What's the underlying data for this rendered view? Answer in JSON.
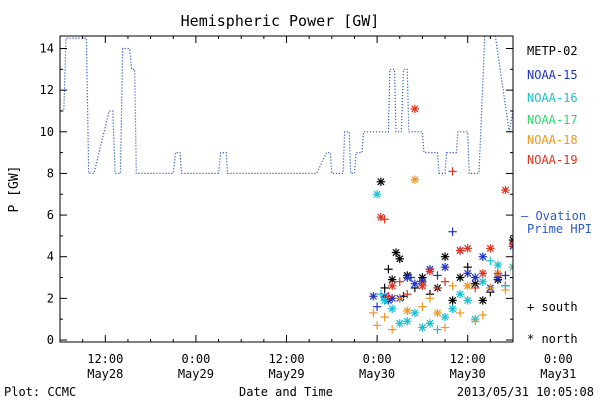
{
  "chart_data": {
    "type": "scatter",
    "title": "Hemispheric Power [GW]",
    "ylabel": "P [GW]",
    "xlabel": "Date and Time",
    "ylim": [
      0,
      15
    ],
    "yticks": [
      0,
      2,
      4,
      6,
      8,
      10,
      12,
      14
    ],
    "xlim_hours": [
      -6,
      54
    ],
    "xticks": [
      {
        "h": 0,
        "time": "12:00",
        "date": "May28"
      },
      {
        "h": 12,
        "time": "0:00",
        "date": "May29"
      },
      {
        "h": 24,
        "time": "12:00",
        "date": "May29"
      },
      {
        "h": 36,
        "time": "0:00",
        "date": "May30"
      },
      {
        "h": 48,
        "time": "12:00",
        "date": "May30"
      },
      {
        "h": 60,
        "time": "0:00",
        "date": "May31"
      }
    ],
    "footer_left": "Plot: CCMC",
    "footer_right": "2013/05/31 10:05:08",
    "legend": {
      "series_labels": [
        {
          "name": "METP-02",
          "color": "#000000"
        },
        {
          "name": "NOAA-15",
          "color": "#1e32c8"
        },
        {
          "name": "NOAA-16",
          "color": "#19c0d0"
        },
        {
          "name": "NOAA-17",
          "color": "#2fd86a"
        },
        {
          "name": "NOAA-18",
          "color": "#f0961e"
        },
        {
          "name": "NOAA-19",
          "color": "#e0321e"
        }
      ],
      "ovation_label_1": "— Ovation",
      "ovation_label_2": "Prime HPI",
      "south_label": "+ south",
      "north_label": "* north"
    },
    "ovation_line": {
      "color": "#2a5acc",
      "points": [
        [
          -6.5,
          11
        ],
        [
          -5.5,
          11
        ],
        [
          -5.2,
          14.5
        ],
        [
          -2.5,
          14.5
        ],
        [
          -2.2,
          8
        ],
        [
          -1.5,
          8
        ],
        [
          0.5,
          11
        ],
        [
          1,
          11
        ],
        [
          1.3,
          8
        ],
        [
          2,
          8
        ],
        [
          2.3,
          14
        ],
        [
          3.2,
          14
        ],
        [
          3.5,
          13
        ],
        [
          3.9,
          13
        ],
        [
          4.1,
          8
        ],
        [
          9,
          8
        ],
        [
          9.3,
          9
        ],
        [
          9.9,
          9
        ],
        [
          10.1,
          8
        ],
        [
          15,
          8
        ],
        [
          15.3,
          9
        ],
        [
          16,
          9
        ],
        [
          16.2,
          8
        ],
        [
          28,
          8
        ],
        [
          29.3,
          9
        ],
        [
          29.8,
          9
        ],
        [
          30,
          8
        ],
        [
          31.5,
          8
        ],
        [
          31.7,
          10
        ],
        [
          32.3,
          10
        ],
        [
          32.5,
          8
        ],
        [
          33,
          8
        ],
        [
          33.2,
          9
        ],
        [
          34,
          9
        ],
        [
          34.2,
          10
        ],
        [
          37.5,
          10
        ],
        [
          37.7,
          13
        ],
        [
          38.3,
          13
        ],
        [
          38.5,
          10
        ],
        [
          39.2,
          10
        ],
        [
          39.5,
          13
        ],
        [
          40,
          13
        ],
        [
          40.2,
          10
        ],
        [
          42,
          10
        ],
        [
          42.2,
          9
        ],
        [
          44,
          9
        ],
        [
          44.2,
          8
        ],
        [
          45,
          8
        ],
        [
          45.2,
          9
        ],
        [
          46.5,
          9
        ],
        [
          46.7,
          10
        ],
        [
          48,
          10
        ],
        [
          48.2,
          8
        ],
        [
          49.5,
          8
        ],
        [
          50.3,
          15
        ],
        [
          51.5,
          15
        ],
        [
          53.5,
          10
        ],
        [
          54,
          11
        ],
        [
          54.3,
          15
        ],
        [
          55,
          15
        ],
        [
          55.2,
          11
        ],
        [
          56.5,
          11
        ],
        [
          56.7,
          8
        ],
        [
          58,
          8
        ],
        [
          58.3,
          10
        ],
        [
          60.5,
          10
        ],
        [
          60.8,
          12
        ],
        [
          61,
          12
        ],
        [
          61.2,
          9
        ],
        [
          62,
          9
        ],
        [
          62.3,
          8
        ],
        [
          63.5,
          8
        ],
        [
          63.8,
          11
        ],
        [
          64,
          11
        ],
        [
          64.2,
          10
        ],
        [
          65,
          10
        ],
        [
          65.2,
          9
        ],
        [
          66,
          9
        ],
        [
          66.2,
          10
        ],
        [
          67.5,
          10
        ],
        [
          67.7,
          12
        ],
        [
          68,
          12
        ],
        [
          68.2,
          9
        ],
        [
          69,
          9
        ],
        [
          69.3,
          11
        ],
        [
          70.8,
          11
        ],
        [
          71,
          14
        ],
        [
          72,
          14
        ],
        [
          72.3,
          11
        ],
        [
          73.5,
          11
        ],
        [
          73.8,
          13
        ],
        [
          74.2,
          13
        ],
        [
          74.5,
          10
        ]
      ]
    },
    "series": [
      {
        "name": "METP-02",
        "color": "#000000",
        "points": [
          [
            36.5,
            7.6,
            "north"
          ],
          [
            37,
            2.5,
            "south"
          ],
          [
            37.5,
            3.4,
            "south"
          ],
          [
            38,
            2.9,
            "north"
          ],
          [
            38.5,
            4.2,
            "north"
          ],
          [
            39,
            3.9,
            "north"
          ],
          [
            39.5,
            2.1,
            "south"
          ],
          [
            40,
            3.1,
            "north"
          ],
          [
            41,
            2.5,
            "south"
          ],
          [
            42,
            3,
            "north"
          ],
          [
            43,
            2.2,
            "south"
          ],
          [
            44,
            2.5,
            "north"
          ],
          [
            45,
            4,
            "north"
          ],
          [
            46,
            1.9,
            "north"
          ],
          [
            47,
            3,
            "north"
          ],
          [
            48,
            3.5,
            "south"
          ],
          [
            49,
            2.7,
            "north"
          ],
          [
            50,
            1.9,
            "north"
          ],
          [
            51,
            2.3,
            "south"
          ],
          [
            52,
            2.9,
            "north"
          ],
          [
            53,
            2.6,
            "south"
          ],
          [
            54,
            4.8,
            "north"
          ],
          [
            55,
            6.1,
            "north"
          ],
          [
            56,
            5.8,
            "south"
          ],
          [
            57,
            2.3,
            "north"
          ],
          [
            58,
            1.9,
            "south"
          ],
          [
            59,
            3.2,
            "south"
          ],
          [
            60,
            6.3,
            "north"
          ],
          [
            61,
            3.3,
            "south"
          ],
          [
            62,
            4.2,
            "north"
          ],
          [
            63,
            5.6,
            "north"
          ],
          [
            64,
            2.2,
            "north"
          ],
          [
            65,
            3,
            "south"
          ],
          [
            66,
            2.5,
            "north"
          ]
        ]
      },
      {
        "name": "NOAA-15",
        "color": "#1e32c8",
        "points": [
          [
            35.5,
            2.1,
            "north"
          ],
          [
            36,
            1.6,
            "south"
          ],
          [
            37,
            2.1,
            "north"
          ],
          [
            37.5,
            1.9,
            "north"
          ],
          [
            38,
            2,
            "north"
          ],
          [
            39,
            2,
            "north"
          ],
          [
            40,
            3,
            "north"
          ],
          [
            40.5,
            3,
            "south"
          ],
          [
            41,
            2.7,
            "north"
          ],
          [
            42,
            2.8,
            "north"
          ],
          [
            43,
            3.4,
            "north"
          ],
          [
            44,
            3.1,
            "south"
          ],
          [
            45,
            3.5,
            "north"
          ],
          [
            46,
            5.2,
            "south"
          ],
          [
            47,
            4.3,
            "north"
          ],
          [
            48,
            3.2,
            "north"
          ],
          [
            49,
            3,
            "north"
          ],
          [
            50,
            4,
            "north"
          ],
          [
            51,
            2.5,
            "north"
          ],
          [
            52,
            3,
            "north"
          ],
          [
            53,
            3.1,
            "south"
          ],
          [
            54,
            4.5,
            "north"
          ],
          [
            55,
            3.7,
            "north"
          ],
          [
            56,
            3,
            "south"
          ],
          [
            57,
            2,
            "north"
          ],
          [
            58,
            3.5,
            "north"
          ],
          [
            59,
            2.7,
            "south"
          ],
          [
            60,
            2.9,
            "north"
          ],
          [
            61,
            4.5,
            "south"
          ],
          [
            62,
            4.3,
            "north"
          ],
          [
            63,
            3.1,
            "north"
          ],
          [
            64,
            3.8,
            "north"
          ],
          [
            65,
            2.9,
            "south"
          ],
          [
            66,
            6.6,
            "south"
          ],
          [
            67,
            2.7,
            "north"
          ]
        ]
      },
      {
        "name": "NOAA-16",
        "color": "#19c0d0",
        "points": [
          [
            36,
            7,
            "north"
          ],
          [
            36.5,
            2.2,
            "south"
          ],
          [
            37,
            1.9,
            "north"
          ],
          [
            38,
            1.5,
            "north"
          ],
          [
            39,
            0.8,
            "north"
          ],
          [
            40,
            0.9,
            "north"
          ],
          [
            41,
            1.3,
            "north"
          ],
          [
            42,
            0.6,
            "north"
          ],
          [
            43,
            0.8,
            "north"
          ],
          [
            44,
            0.5,
            "south"
          ],
          [
            45,
            1.1,
            "north"
          ],
          [
            46,
            1.5,
            "north"
          ],
          [
            47,
            2.2,
            "north"
          ],
          [
            48,
            1.9,
            "north"
          ],
          [
            49,
            1,
            "north"
          ],
          [
            50,
            2.8,
            "north"
          ],
          [
            51,
            3.8,
            "south"
          ],
          [
            52,
            3.6,
            "north"
          ],
          [
            53,
            2.6,
            "south"
          ],
          [
            54,
            3.5,
            "north"
          ],
          [
            55,
            1.7,
            "north"
          ],
          [
            56,
            2.3,
            "north"
          ],
          [
            57,
            3.4,
            "north"
          ],
          [
            58,
            3,
            "north"
          ],
          [
            59,
            1.8,
            "south"
          ],
          [
            60,
            13.3,
            "south"
          ],
          [
            61,
            2.2,
            "north"
          ],
          [
            62,
            1.8,
            "north"
          ],
          [
            63,
            2.5,
            "north"
          ],
          [
            64,
            1.5,
            "south"
          ],
          [
            65,
            0.9,
            "north"
          ],
          [
            66,
            0.3,
            "north"
          ],
          [
            67,
            0.1,
            "south"
          ]
        ]
      },
      {
        "name": "NOAA-18",
        "color": "#f0961e",
        "points": [
          [
            35.5,
            1.3,
            "south"
          ],
          [
            36,
            0.7,
            "south"
          ],
          [
            37,
            1.1,
            "south"
          ],
          [
            38,
            0.5,
            "south"
          ],
          [
            39,
            2,
            "south"
          ],
          [
            40,
            1.4,
            "north"
          ],
          [
            41,
            7.7,
            "north"
          ],
          [
            42,
            1.6,
            "south"
          ],
          [
            43,
            2,
            "south"
          ],
          [
            44,
            1.3,
            "north"
          ],
          [
            45,
            0.6,
            "south"
          ],
          [
            46,
            2.6,
            "south"
          ],
          [
            47,
            1.3,
            "south"
          ],
          [
            48,
            2.6,
            "north"
          ],
          [
            49,
            0.9,
            "south"
          ],
          [
            50,
            1.2,
            "south"
          ],
          [
            51,
            2.5,
            "south"
          ],
          [
            52,
            3.2,
            "north"
          ],
          [
            53,
            2.4,
            "south"
          ],
          [
            54,
            3.5,
            "south"
          ],
          [
            55,
            1.9,
            "north"
          ],
          [
            56,
            1.3,
            "south"
          ],
          [
            57,
            2.4,
            "south"
          ],
          [
            58,
            1.8,
            "south"
          ],
          [
            59,
            1.6,
            "south"
          ],
          [
            60,
            1,
            "south"
          ],
          [
            61,
            0.5,
            "south"
          ],
          [
            62,
            0.5,
            "south"
          ],
          [
            63,
            2,
            "north"
          ],
          [
            64,
            1.1,
            "south"
          ],
          [
            65,
            2.4,
            "north"
          ],
          [
            66,
            1.5,
            "south"
          ],
          [
            67,
            0.9,
            "north"
          ]
        ]
      },
      {
        "name": "NOAA-19",
        "color": "#e0321e",
        "points": [
          [
            36.5,
            5.9,
            "north"
          ],
          [
            37,
            5.8,
            "south"
          ],
          [
            37.5,
            2.1,
            "south"
          ],
          [
            38,
            2.6,
            "north"
          ],
          [
            39,
            2.8,
            "south"
          ],
          [
            40,
            2.2,
            "south"
          ],
          [
            41,
            11.1,
            "north"
          ],
          [
            42,
            2.6,
            "north"
          ],
          [
            43,
            3.3,
            "north"
          ],
          [
            44,
            2.5,
            "south"
          ],
          [
            45,
            2.8,
            "south"
          ],
          [
            46,
            8.1,
            "south"
          ],
          [
            47,
            4.3,
            "north"
          ],
          [
            48,
            4.4,
            "north"
          ],
          [
            49,
            2.5,
            "south"
          ],
          [
            50,
            3.2,
            "north"
          ],
          [
            51,
            4.4,
            "north"
          ],
          [
            52,
            3.2,
            "south"
          ],
          [
            53,
            7.2,
            "north"
          ],
          [
            54,
            4.6,
            "north"
          ],
          [
            55,
            3.1,
            "north"
          ],
          [
            56,
            3.5,
            "north"
          ],
          [
            57,
            7,
            "north"
          ],
          [
            58,
            3.7,
            "north"
          ],
          [
            59,
            2.6,
            "south"
          ],
          [
            60,
            9.6,
            "north"
          ],
          [
            61,
            3.2,
            "south"
          ],
          [
            62,
            3.9,
            "south"
          ],
          [
            63,
            4.6,
            "north"
          ],
          [
            64,
            2.8,
            "south"
          ],
          [
            65,
            3.4,
            "north"
          ],
          [
            66,
            2.7,
            "south"
          ],
          [
            67,
            3.2,
            "north"
          ]
        ]
      }
    ]
  }
}
